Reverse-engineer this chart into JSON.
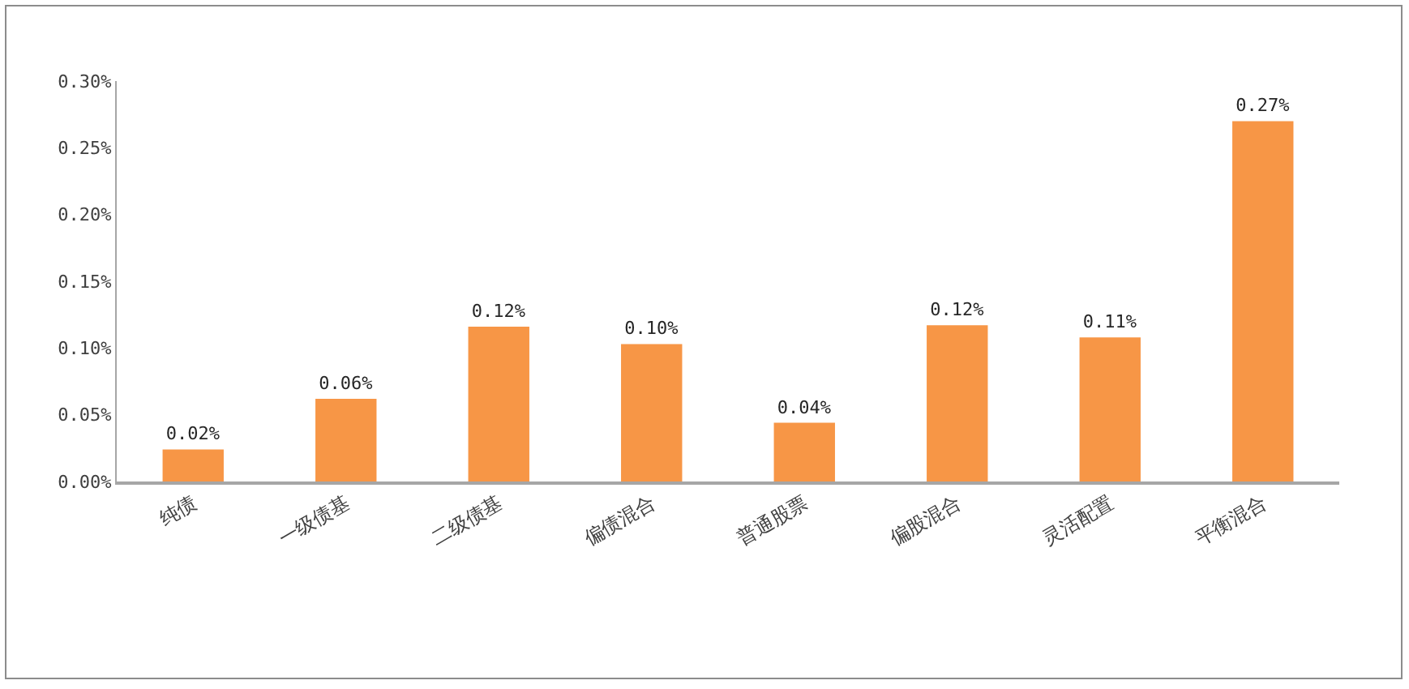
{
  "chart_data": {
    "type": "bar",
    "categories": [
      "纯债",
      "一级债基",
      "二级债基",
      "偏债混合",
      "普通股票",
      "偏股混合",
      "灵活配置",
      "平衡混合"
    ],
    "values": [
      0.024,
      0.062,
      0.116,
      0.103,
      0.044,
      0.117,
      0.108,
      0.27
    ],
    "value_labels": [
      "0.02%",
      "0.06%",
      "0.12%",
      "0.10%",
      "0.04%",
      "0.12%",
      "0.11%",
      "0.27%"
    ],
    "color": "#f79646",
    "ylim": [
      0,
      0.3
    ],
    "yticks": [
      {
        "value": 0,
        "label": "0.00%"
      },
      {
        "value": 0.05,
        "label": "0.05%"
      },
      {
        "value": 0.1,
        "label": "0.10%"
      },
      {
        "value": 0.15,
        "label": "0.15%"
      },
      {
        "value": 0.2,
        "label": "0.20%"
      },
      {
        "value": 0.25,
        "label": "0.25%"
      },
      {
        "value": 0.3,
        "label": "0.30%"
      }
    ]
  }
}
